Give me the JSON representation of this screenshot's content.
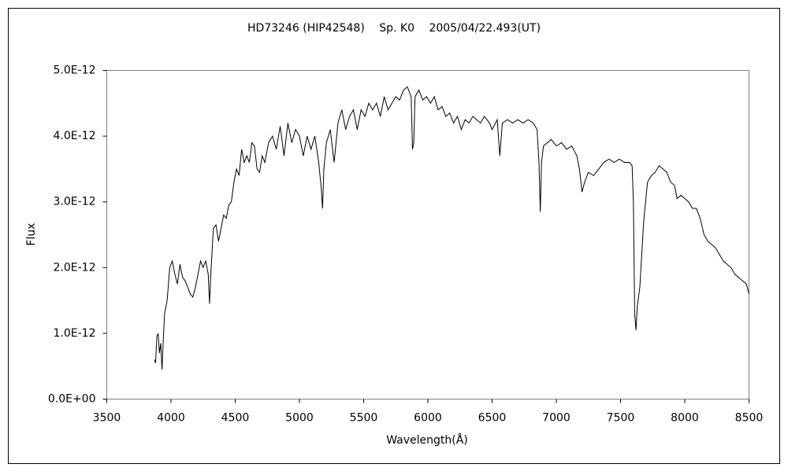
{
  "chart_data": {
    "type": "line",
    "title": "HD73246 (HIP42548)　 Sp. K0　 2005/04/22.493(UT)",
    "x_label": "Wavelength(Å)",
    "y_label": "Flux",
    "color": "#000000",
    "grid": false,
    "xlim": [
      3500,
      8500
    ],
    "xticks": [
      3500,
      4000,
      4500,
      5000,
      5500,
      6000,
      6500,
      7000,
      7500,
      8000,
      8500
    ],
    "ylim": [
      0,
      5e-12
    ],
    "yticks": [
      {
        "value": 0,
        "label": "0.0E+00"
      },
      {
        "value": 1e-12,
        "label": "1.0E-12"
      },
      {
        "value": 2e-12,
        "label": "2.0E-12"
      },
      {
        "value": 3e-12,
        "label": "3.0E-12"
      },
      {
        "value": 4e-12,
        "label": "4.0E-12"
      },
      {
        "value": 5e-12,
        "label": "5.0E-12"
      }
    ],
    "x": [
      3870,
      3880,
      3890,
      3900,
      3910,
      3920,
      3930,
      3940,
      3950,
      3970,
      3990,
      4010,
      4030,
      4050,
      4070,
      4090,
      4110,
      4130,
      4150,
      4170,
      4190,
      4210,
      4230,
      4250,
      4270,
      4290,
      4300,
      4310,
      4330,
      4350,
      4370,
      4390,
      4410,
      4430,
      4450,
      4470,
      4490,
      4510,
      4530,
      4550,
      4570,
      4590,
      4610,
      4630,
      4650,
      4670,
      4690,
      4710,
      4730,
      4760,
      4790,
      4820,
      4850,
      4880,
      4910,
      4940,
      4970,
      5000,
      5030,
      5060,
      5090,
      5120,
      5150,
      5170,
      5180,
      5190,
      5210,
      5240,
      5270,
      5300,
      5330,
      5360,
      5390,
      5420,
      5450,
      5480,
      5510,
      5540,
      5570,
      5600,
      5630,
      5660,
      5690,
      5720,
      5750,
      5780,
      5810,
      5840,
      5870,
      5880,
      5890,
      5900,
      5930,
      5960,
      5990,
      6020,
      6050,
      6080,
      6110,
      6140,
      6170,
      6200,
      6230,
      6260,
      6290,
      6320,
      6350,
      6380,
      6410,
      6440,
      6480,
      6500,
      6540,
      6560,
      6580,
      6620,
      6660,
      6700,
      6740,
      6780,
      6820,
      6850,
      6865,
      6875,
      6885,
      6900,
      6930,
      6960,
      7000,
      7040,
      7080,
      7120,
      7160,
      7180,
      7200,
      7220,
      7250,
      7290,
      7330,
      7370,
      7410,
      7450,
      7490,
      7530,
      7570,
      7590,
      7600,
      7610,
      7620,
      7630,
      7650,
      7680,
      7710,
      7740,
      7770,
      7800,
      7830,
      7860,
      7890,
      7920,
      7940,
      7970,
      8000,
      8030,
      8060,
      8090,
      8120,
      8150,
      8180,
      8210,
      8240,
      8270,
      8300,
      8330,
      8360,
      8390,
      8420,
      8450,
      8480,
      8500
    ],
    "values": [
      6e-13,
      5.5e-13,
      9.5e-13,
      1e-12,
      7e-13,
      8.5e-13,
      4.5e-13,
      9e-13,
      1.3e-12,
      1.5e-12,
      2e-12,
      2.1e-12,
      1.9e-12,
      1.75e-12,
      2.05e-12,
      1.85e-12,
      1.8e-12,
      1.7e-12,
      1.6e-12,
      1.55e-12,
      1.7e-12,
      1.9e-12,
      2.1e-12,
      2e-12,
      2.1e-12,
      1.9e-12,
      1.45e-12,
      1.9e-12,
      2.6e-12,
      2.65e-12,
      2.4e-12,
      2.6e-12,
      2.8e-12,
      2.75e-12,
      2.95e-12,
      3e-12,
      3.3e-12,
      3.5e-12,
      3.4e-12,
      3.8e-12,
      3.6e-12,
      3.7e-12,
      3.6e-12,
      3.9e-12,
      3.85e-12,
      3.5e-12,
      3.45e-12,
      3.7e-12,
      3.6e-12,
      3.9e-12,
      4e-12,
      3.8e-12,
      4.15e-12,
      3.7e-12,
      4.2e-12,
      3.9e-12,
      4.1e-12,
      4e-12,
      3.7e-12,
      4e-12,
      3.8e-12,
      4e-12,
      3.6e-12,
      3.2e-12,
      2.9e-12,
      3.5e-12,
      3.9e-12,
      4.1e-12,
      3.6e-12,
      4.2e-12,
      4.4e-12,
      4.1e-12,
      4.3e-12,
      4.4e-12,
      4.1e-12,
      4.4e-12,
      4.3e-12,
      4.5e-12,
      4.4e-12,
      4.5e-12,
      4.3e-12,
      4.6e-12,
      4.4e-12,
      4.5e-12,
      4.6e-12,
      4.55e-12,
      4.7e-12,
      4.75e-12,
      4.6e-12,
      3.8e-12,
      3.9e-12,
      4.6e-12,
      4.7e-12,
      4.55e-12,
      4.6e-12,
      4.5e-12,
      4.6e-12,
      4.4e-12,
      4.45e-12,
      4.3e-12,
      4.35e-12,
      4.2e-12,
      4.3e-12,
      4.1e-12,
      4.25e-12,
      4.2e-12,
      4.3e-12,
      4.25e-12,
      4.2e-12,
      4.3e-12,
      4.2e-12,
      4.1e-12,
      4.25e-12,
      3.7e-12,
      4.2e-12,
      4.25e-12,
      4.2e-12,
      4.25e-12,
      4.2e-12,
      4.25e-12,
      4.2e-12,
      4.1e-12,
      3.6e-12,
      2.85e-12,
      3.6e-12,
      3.85e-12,
      3.9e-12,
      3.95e-12,
      3.85e-12,
      3.9e-12,
      3.8e-12,
      3.85e-12,
      3.7e-12,
      3.5e-12,
      3.15e-12,
      3.3e-12,
      3.45e-12,
      3.4e-12,
      3.5e-12,
      3.6e-12,
      3.65e-12,
      3.6e-12,
      3.65e-12,
      3.6e-12,
      3.6e-12,
      3.55e-12,
      3e-12,
      1.3e-12,
      1.05e-12,
      1.4e-12,
      1.7e-12,
      2.7e-12,
      3.3e-12,
      3.4e-12,
      3.45e-12,
      3.55e-12,
      3.5e-12,
      3.45e-12,
      3.3e-12,
      3.25e-12,
      3.05e-12,
      3.1e-12,
      3.05e-12,
      3e-12,
      2.9e-12,
      2.9e-12,
      2.75e-12,
      2.5e-12,
      2.4e-12,
      2.35e-12,
      2.3e-12,
      2.2e-12,
      2.1e-12,
      2.05e-12,
      2e-12,
      1.9e-12,
      1.85e-12,
      1.8e-12,
      1.75e-12,
      1.6e-12
    ]
  }
}
